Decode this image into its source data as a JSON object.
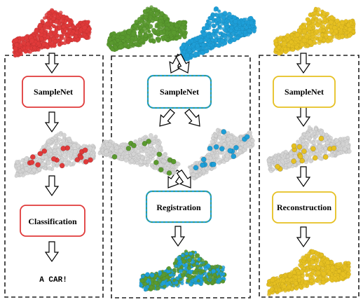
{
  "colors": {
    "red": "#e03a3a",
    "green": "#5a9a2f",
    "blue": "#1e9fd8",
    "yellow": "#e6c021",
    "frame": "#222222",
    "gray_cloud": "#d4d4d4"
  },
  "panels": {
    "classification": {
      "sample_label": "SampleNet",
      "task_label": "Classification",
      "output_text": "A CAR!"
    },
    "registration": {
      "sample_label": "SampleNet",
      "task_label": "Registration"
    },
    "reconstruction": {
      "sample_label": "SampleNet",
      "task_label": "Reconstruction"
    }
  },
  "icons": [
    "down-arrow-icon",
    "diagonal-arrow-icon"
  ]
}
